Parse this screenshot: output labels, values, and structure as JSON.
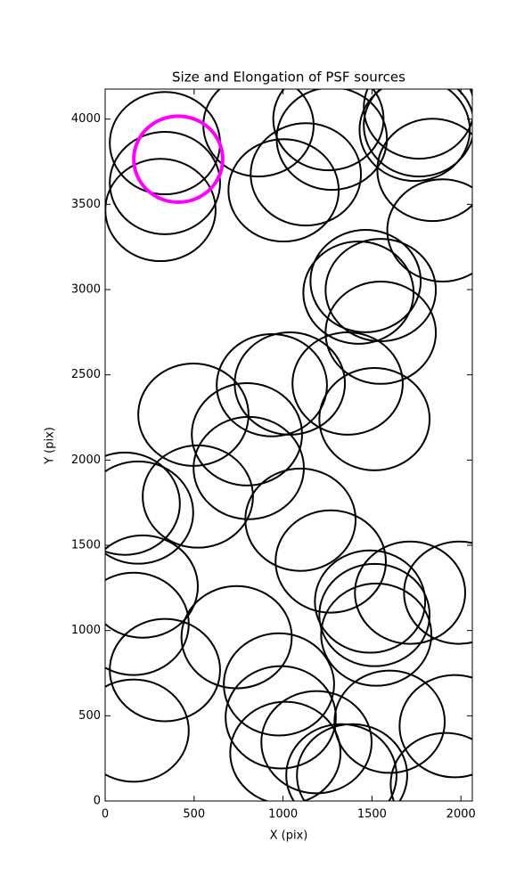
{
  "chart_data": {
    "type": "ellipse",
    "title": "Size and Elongation of PSF sources",
    "x_label": "X (pix)",
    "y_label": "Y (pix)",
    "xlim": [
      0,
      2064
    ],
    "ylim": [
      0,
      4176
    ],
    "xticks": [
      0,
      500,
      1000,
      1500,
      2000
    ],
    "yticks": [
      0,
      500,
      1000,
      1500,
      2000,
      2500,
      3000,
      3500,
      4000
    ],
    "series": [
      {
        "color": "#000000",
        "x": [
          336,
          336,
          311,
          862,
          1003,
          1128,
          1274,
          1255,
          1764,
          1740,
          1764,
          1840,
          1896,
          1464,
          1424,
          1549,
          1549,
          1363,
          937,
          1038,
          1514,
          496,
          797,
          807,
          110,
          185,
          521,
          1098,
          1268,
          211,
          160,
          336,
          739,
          1714,
          1990,
          1489,
          1514,
          1524,
          977,
          987,
          1188,
          1013,
          1599,
          1965,
          160,
          1328,
          1915,
          1388
        ],
        "y": [
          3859,
          3625,
          3467,
          3963,
          3582,
          3676,
          3885,
          4000,
          4068,
          3937,
          3963,
          3702,
          3347,
          3050,
          2982,
          2997,
          2747,
          2449,
          2439,
          2449,
          2240,
          2266,
          2151,
          1953,
          1744,
          1692,
          1786,
          1650,
          1405,
          1258,
          1039,
          768,
          961,
          1222,
          1222,
          1170,
          1091,
          976,
          684,
          491,
          345,
          282,
          465,
          439,
          413,
          151,
          99,
          151
        ],
        "width": [
          620,
          620,
          620,
          620,
          620,
          620,
          620,
          620,
          620,
          620,
          620,
          620,
          620,
          620,
          620,
          620,
          620,
          620,
          620,
          620,
          620,
          620,
          620,
          620,
          620,
          620,
          620,
          620,
          620,
          620,
          620,
          620,
          620,
          620,
          620,
          620,
          620,
          620,
          620,
          620,
          620,
          620,
          620,
          620,
          620,
          620,
          620,
          620
        ],
        "height": [
          600,
          600,
          600,
          600,
          600,
          600,
          600,
          600,
          600,
          600,
          600,
          600,
          600,
          600,
          600,
          600,
          600,
          600,
          600,
          600,
          600,
          600,
          600,
          600,
          600,
          600,
          600,
          600,
          600,
          600,
          600,
          600,
          600,
          600,
          600,
          600,
          600,
          600,
          600,
          600,
          600,
          600,
          600,
          600,
          600,
          600,
          600,
          600
        ]
      },
      {
        "color": "#ff00ff",
        "x": [
          411
        ],
        "y": [
          3765
        ],
        "width": [
          500
        ],
        "height": [
          505
        ]
      }
    ]
  }
}
